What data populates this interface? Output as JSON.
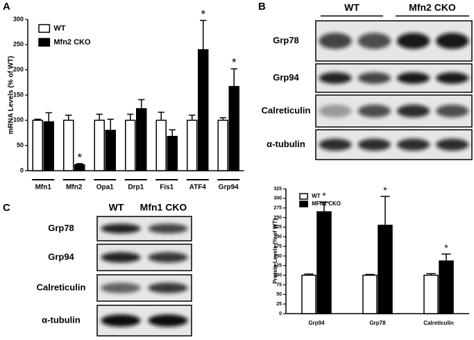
{
  "panels": [
    "A",
    "B",
    "C"
  ],
  "chart_data": [
    {
      "type": "bar",
      "y_label": "mRNA Levels (% of WT)",
      "categories": [
        "Mfn1",
        "Mfn2",
        "Opa1",
        "Drp1",
        "Fis1",
        "ATF4",
        "Grp94"
      ],
      "series": [
        {
          "name": "WT",
          "color": "#ffffff",
          "values": [
            100,
            100,
            100,
            100,
            100,
            100,
            100
          ],
          "errors": [
            2,
            10,
            12,
            12,
            16,
            10,
            5
          ],
          "labels": [
            null,
            null,
            null,
            null,
            null,
            null,
            null
          ]
        },
        {
          "name": "Mfn2 CKO",
          "color": "#000000",
          "values": [
            97,
            12,
            80,
            123,
            68,
            240,
            167
          ],
          "errors": [
            18,
            2,
            22,
            18,
            13,
            58,
            35
          ],
          "labels": [
            null,
            "*",
            null,
            null,
            null,
            "*",
            "*"
          ]
        }
      ],
      "ylim": [
        0,
        300
      ],
      "yticks": [
        0,
        50,
        100,
        150,
        200,
        250,
        300
      ],
      "legend": "upper left"
    },
    {
      "type": "bar",
      "y_label": "Protein Levels (% of WT)",
      "categories": [
        "Grp94",
        "Grp78",
        "Calreticulin"
      ],
      "series": [
        {
          "name": "WT",
          "color": "#ffffff",
          "values": [
            100,
            100,
            100
          ],
          "errors": [
            3,
            2,
            4
          ],
          "labels": [
            null,
            null,
            null
          ]
        },
        {
          "name": "MFN2 CKO",
          "color": "#000000",
          "values": [
            265,
            230,
            137
          ],
          "errors": [
            25,
            75,
            18
          ],
          "labels": [
            "*",
            "*",
            "*"
          ]
        }
      ],
      "ylim": [
        0,
        325
      ],
      "yticks": [
        0,
        25,
        50,
        75,
        100,
        125,
        150,
        175,
        200,
        225,
        250,
        275,
        300,
        325
      ],
      "legend": "upper left"
    }
  ],
  "blots": {
    "b": {
      "groups": [
        "WT",
        "Mfn2 CKO"
      ],
      "rows": [
        "Grp78",
        "Grp94",
        "Calreticulin",
        "α-tubulin"
      ]
    },
    "c": {
      "groups": [
        "WT",
        "Mfn1 CKO"
      ],
      "rows": [
        "Grp78",
        "Grp94",
        "Calreticulin",
        "α-tubulin"
      ]
    }
  }
}
